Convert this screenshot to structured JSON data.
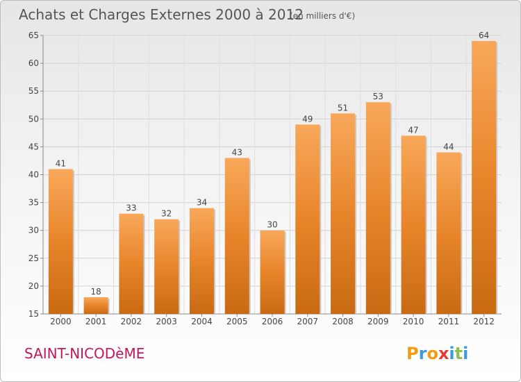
{
  "chart_data": {
    "type": "bar",
    "title": "Achats et Charges Externes 2000 à 2012",
    "subtitle": "(en milliers d'€)",
    "categories": [
      "2000",
      "2001",
      "2002",
      "2003",
      "2004",
      "2005",
      "2006",
      "2007",
      "2008",
      "2009",
      "2010",
      "2011",
      "2012"
    ],
    "values": [
      41,
      18,
      33,
      32,
      34,
      43,
      30,
      49,
      51,
      53,
      47,
      44,
      64
    ],
    "ylim": [
      15,
      65
    ],
    "yticks": [
      15,
      20,
      25,
      30,
      35,
      40,
      45,
      50,
      55,
      60,
      65
    ],
    "grid": true,
    "bar_color": "#e8852b",
    "bar_color_light": "#f8a85a",
    "bar_color_dark": "#c96a12"
  },
  "footer": {
    "place": "SAINT-NICODèME",
    "place_color": "#c2185b",
    "brand": "Proxiti",
    "brand_colors": [
      "#f39c12",
      "#3a9bd9",
      "#f39c12",
      "#e53935",
      "#3a9bd9",
      "#8bc34a",
      "#3a9bd9"
    ]
  }
}
